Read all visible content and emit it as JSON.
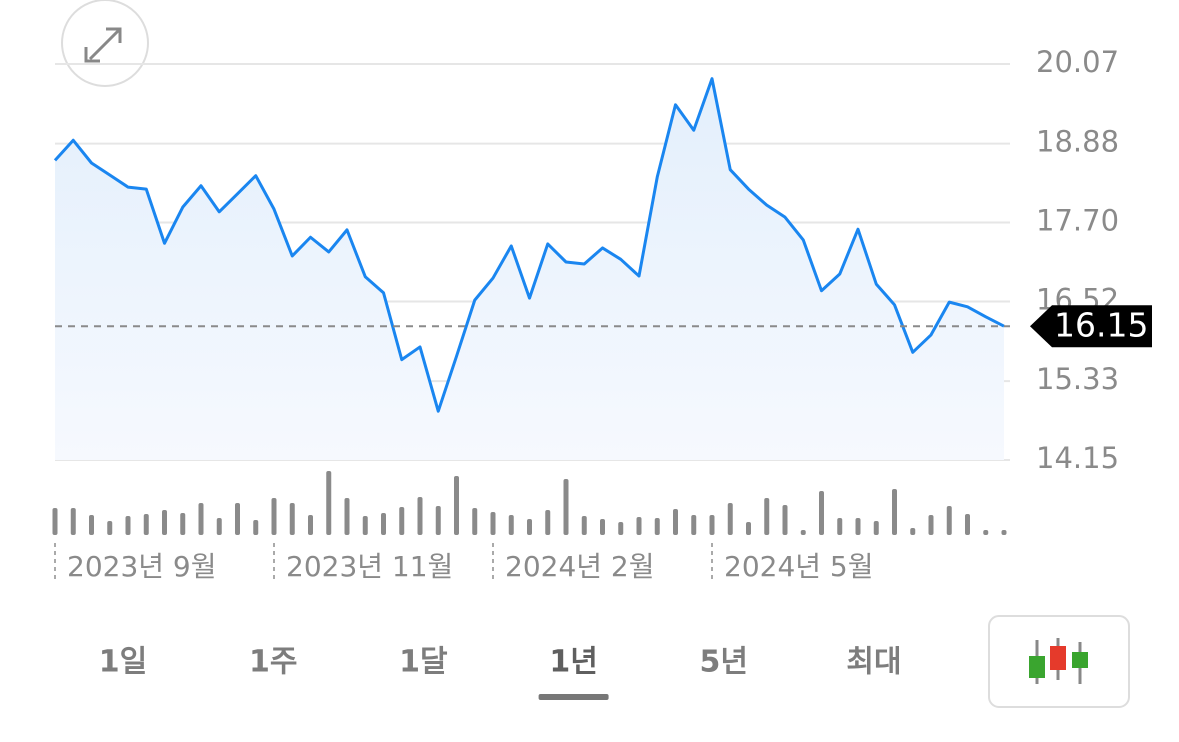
{
  "chart_data": {
    "type": "line",
    "categories": [
      "2023년 9월",
      null,
      null,
      null,
      null,
      null,
      null,
      null,
      null,
      null,
      null,
      null,
      "2023년 11월",
      null,
      null,
      null,
      null,
      null,
      null,
      null,
      null,
      null,
      null,
      null,
      "2024년 2월",
      null,
      null,
      null,
      null,
      null,
      null,
      null,
      null,
      null,
      null,
      null,
      "2024년 5월",
      null,
      null,
      null,
      null,
      null,
      null,
      null,
      null,
      null,
      null,
      null,
      null,
      null,
      null,
      null,
      null
    ],
    "series": [
      {
        "color": "#1a86f0",
        "values": [
          18.63,
          18.93,
          18.59,
          18.41,
          18.23,
          18.2,
          17.39,
          17.93,
          18.25,
          17.86,
          18.13,
          18.4,
          17.9,
          17.2,
          17.48,
          17.26,
          17.59,
          16.89,
          16.65,
          15.65,
          15.84,
          14.88,
          15.7,
          16.54,
          16.87,
          17.35,
          16.57,
          17.38,
          17.11,
          17.08,
          17.32,
          17.15,
          16.9,
          18.38,
          19.46,
          19.08,
          19.85,
          18.49,
          18.2,
          17.96,
          17.78,
          17.44,
          16.68,
          16.93,
          17.6,
          16.78,
          16.47,
          15.76,
          16.02,
          16.51,
          16.44,
          16.29,
          16.15
        ]
      }
    ],
    "volume": {
      "color": "#8a8a8a",
      "values": [
        27,
        27,
        20,
        14,
        19,
        21,
        25,
        22,
        32,
        17,
        32,
        15,
        37,
        32,
        20,
        64,
        37,
        19,
        22,
        28,
        38,
        29,
        59,
        27,
        23,
        20,
        16,
        25,
        56,
        19,
        16,
        13,
        18,
        17,
        26,
        20,
        20,
        32,
        13,
        37,
        30,
        5,
        44,
        17,
        17,
        14,
        46,
        7,
        20,
        29,
        21,
        5,
        5
      ]
    },
    "ylim": [
      14.15,
      20.07
    ],
    "yticks": [
      14.15,
      15.33,
      {
        "value": 16.52,
        "label": "16.52"
      },
      {
        "value": 17.7,
        "label": "17.70"
      },
      18.88,
      20.07
    ],
    "grid": true,
    "last_price": 16.15
  },
  "tabs": [
    "1일",
    "1주",
    "1달",
    "1년",
    "5년",
    "최대"
  ],
  "selected_tab": 3
}
